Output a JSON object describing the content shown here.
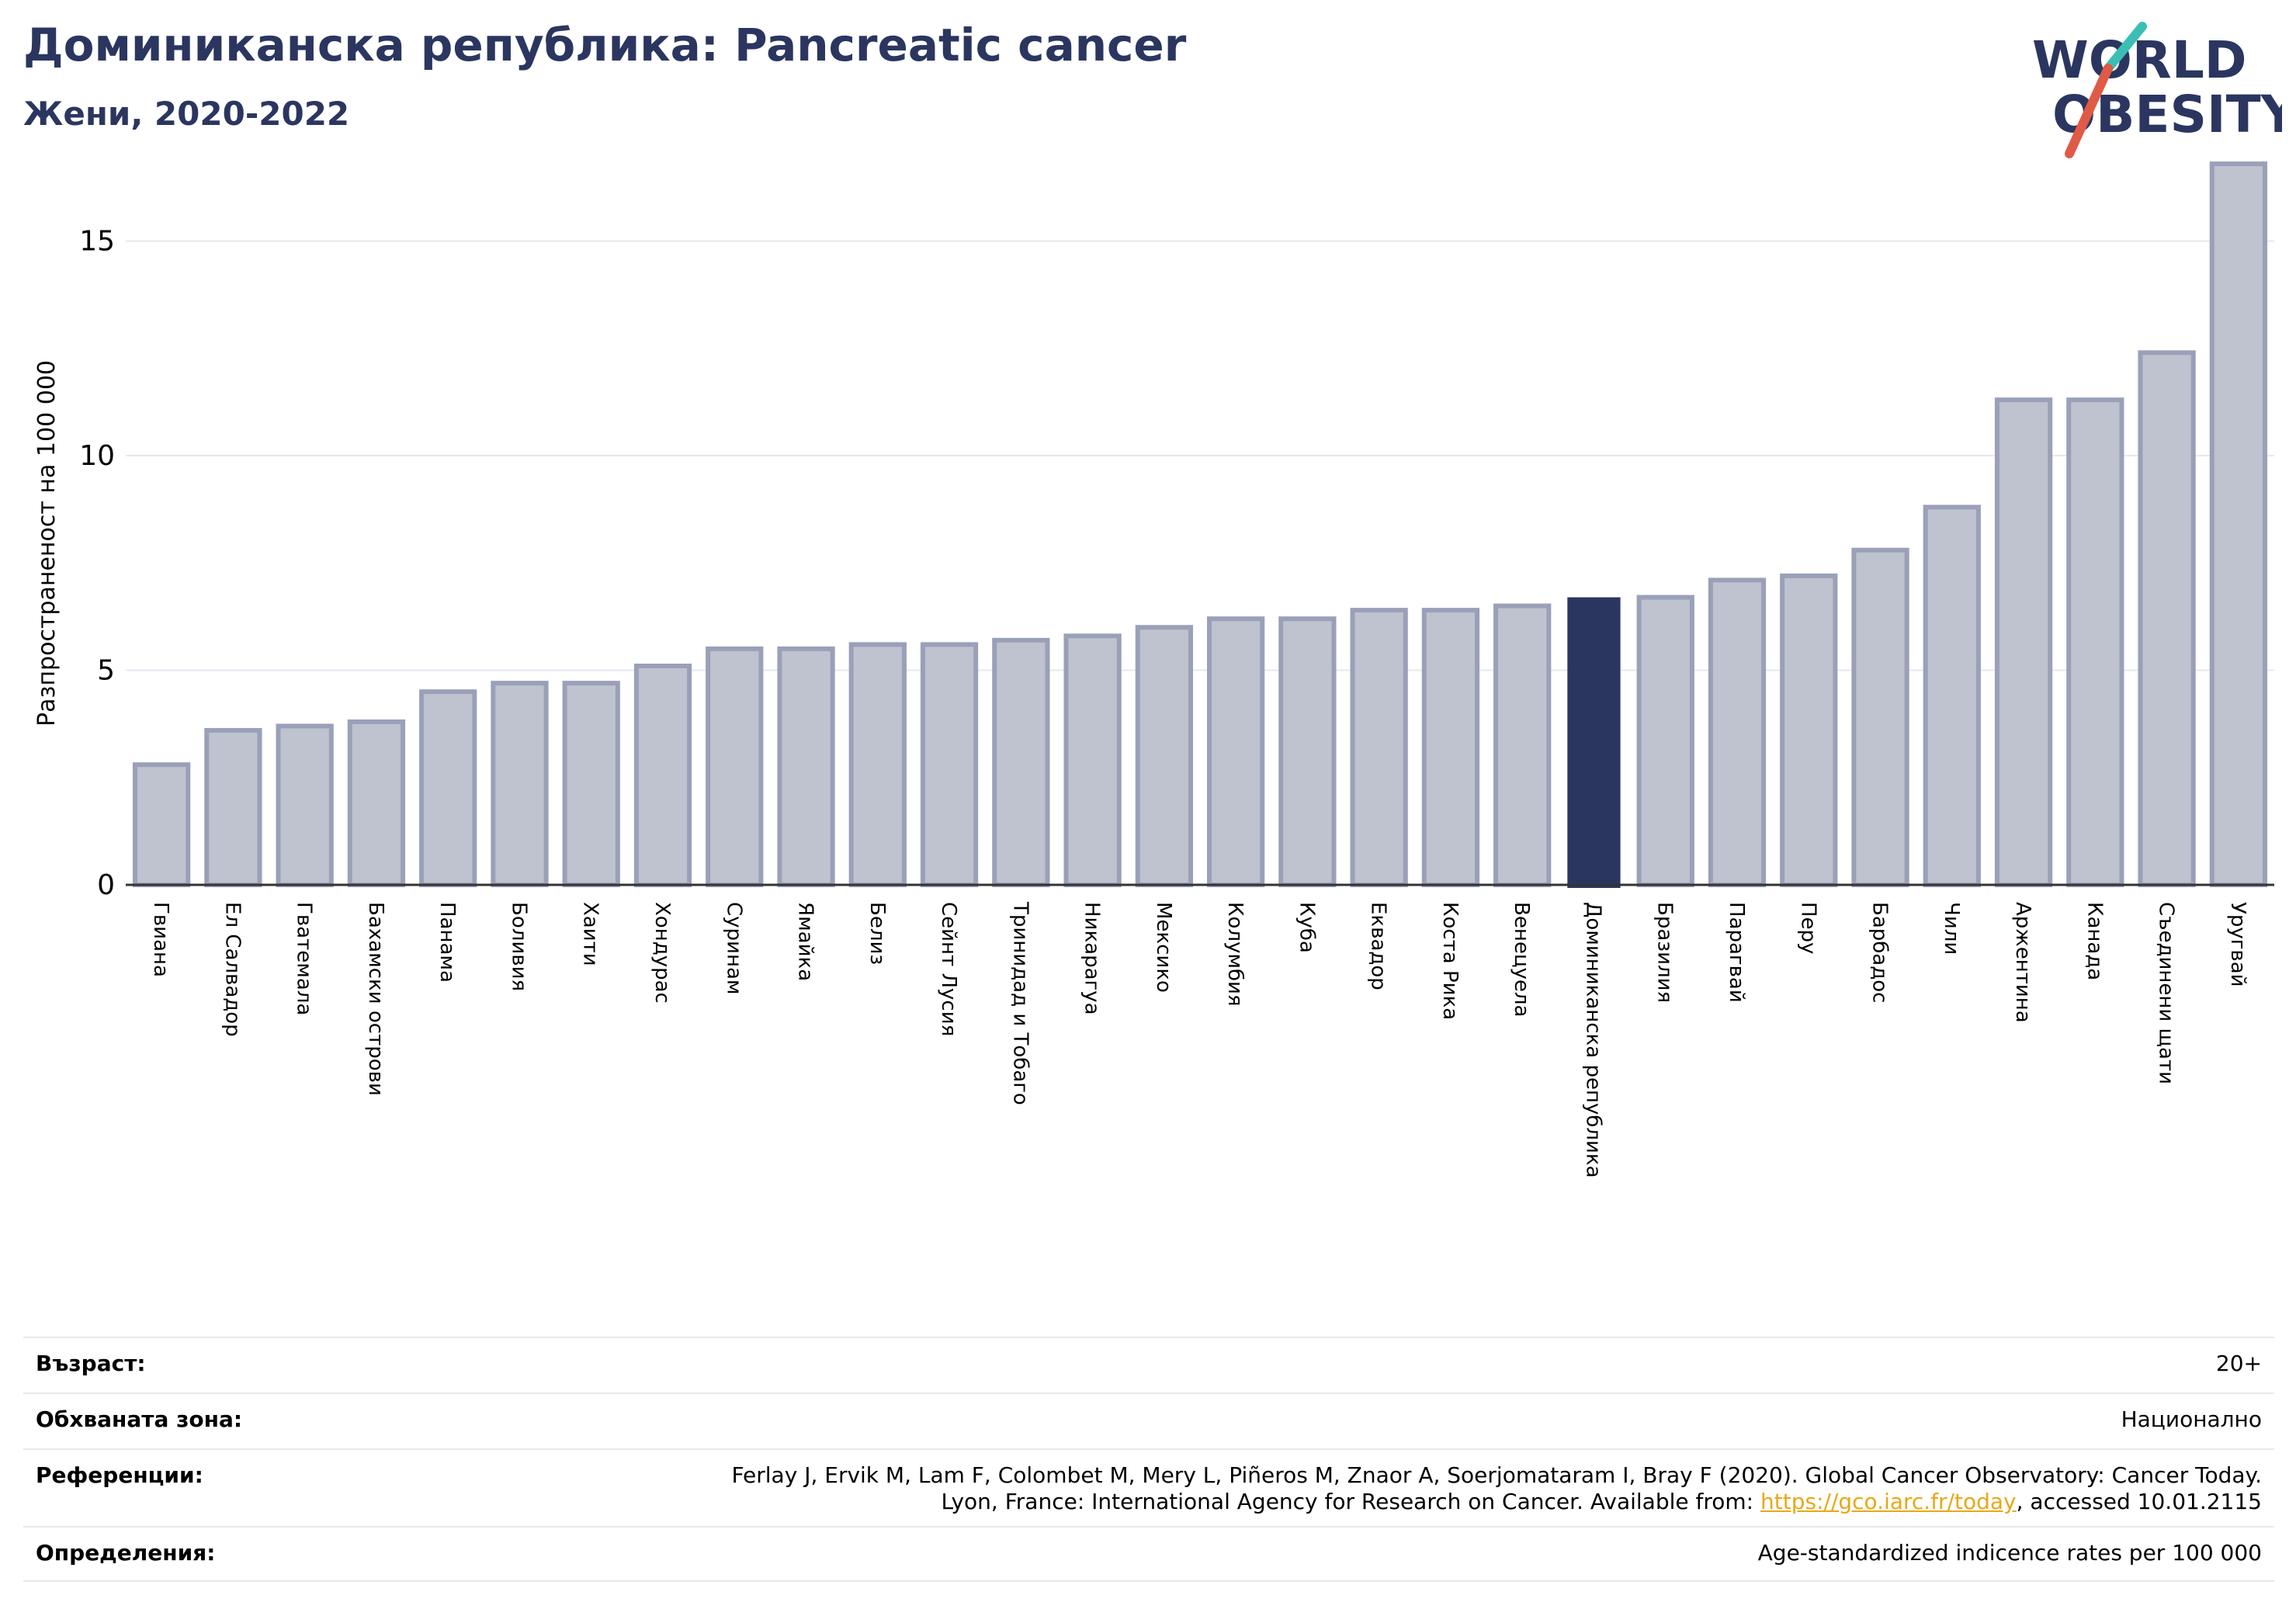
{
  "header": {
    "title": "Доминиканска република: Pancreatic cancer",
    "subtitle": "Жени, 2020-2022"
  },
  "logo": {
    "line1": "WORLD",
    "line2": "OBESITY",
    "colors": {
      "text": "#2b3660",
      "slash_teal": "#3bbfb5",
      "slash_red": "#e05a45"
    }
  },
  "chart_data": {
    "type": "bar",
    "ylabel": "Разпространеност  на 100 000",
    "ylim": [
      0,
      17
    ],
    "yticks": [
      0,
      5,
      10,
      15
    ],
    "grid": true,
    "highlight_category": "Доминиканска република",
    "colors": {
      "bar": "#bfc2cf",
      "bar_edge": "#9aa0b8",
      "highlight": "#2b3660"
    },
    "categories": [
      "Гвиана",
      "Ел Салвадор",
      "Гватемала",
      "Бахамски острови",
      "Панама",
      "Боливия",
      "Хаити",
      "Хондурас",
      "Суринам",
      "Ямайка",
      "Белиз",
      "Сейнт Лусия",
      "Тринидад и Тобаго",
      "Никарагуа",
      "Мексико",
      "Колумбия",
      "Куба",
      "Еквадор",
      "Коста Рика",
      "Венецуела",
      "Доминиканска република",
      "Бразилия",
      "Парагвай",
      "Перу",
      "Барбадос",
      "Чили",
      "Аржентина",
      "Канада",
      "Съединени щати",
      "Уругвай"
    ],
    "values": [
      2.8,
      3.6,
      3.7,
      3.8,
      4.5,
      4.7,
      4.7,
      5.1,
      5.5,
      5.5,
      5.6,
      5.6,
      5.7,
      5.8,
      6.0,
      6.2,
      6.2,
      6.4,
      6.4,
      6.5,
      6.7,
      6.7,
      7.1,
      7.2,
      7.8,
      8.8,
      11.3,
      11.3,
      12.4,
      16.8
    ]
  },
  "info": {
    "age_label": "Възраст:",
    "age_value": "20+",
    "area_label": "Обхваната зона:",
    "area_value": "Национално",
    "ref_label": "Референции:",
    "ref_line1": "Ferlay J, Ervik M, Lam F, Colombet M, Mery L, Piñeros M, Znaor A, Soerjomataram I, Bray F (2020). Global Cancer Observatory: Cancer Today.",
    "ref_line2_prefix": "Lyon, France: International Agency for Research on Cancer. Available from: ",
    "ref_link": "https://gco.iarc.fr/today",
    "ref_line2_suffix": ", accessed 10.01.2115",
    "def_label": "Определения:",
    "def_value": "Age-standardized indicence rates per 100 000"
  }
}
